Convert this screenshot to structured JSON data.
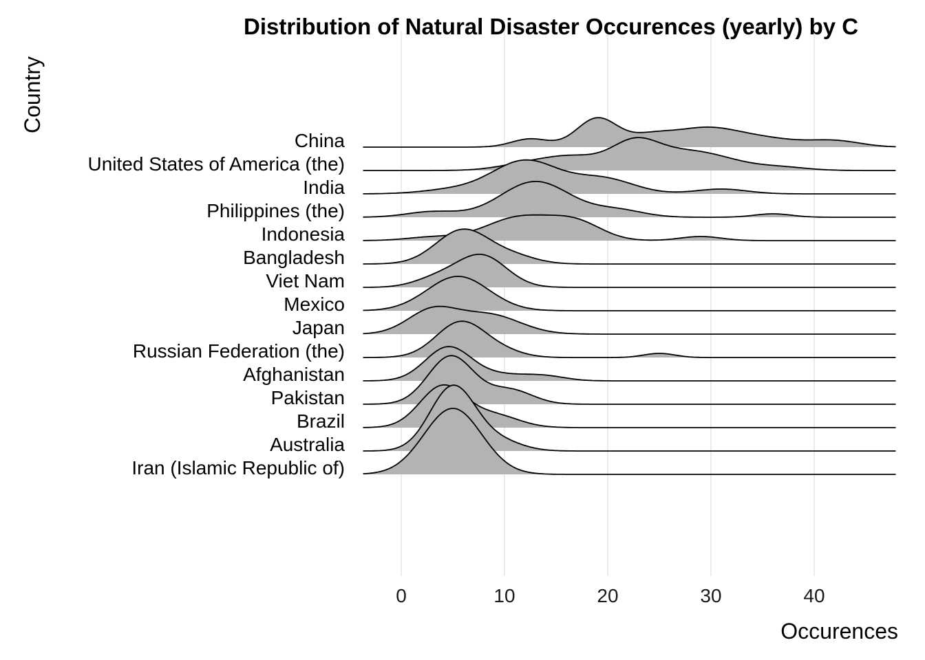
{
  "chart_data": {
    "type": "ridgeline",
    "title": "Distribution of Natural Disaster Occurences (yearly) by C",
    "xlabel": "Occurences",
    "ylabel": "Country",
    "x_ticks": [
      0,
      10,
      20,
      30,
      40
    ],
    "xlim": [
      -3.7,
      48
    ],
    "fill_color": "#b3b3b3",
    "line_color": "#000000",
    "grid": "vertical major gridlines",
    "series": [
      {
        "name": "China",
        "peaks": [
          {
            "mu": 12.5,
            "sd": 1.8,
            "h": 12
          },
          {
            "mu": 19,
            "sd": 2.0,
            "h": 42
          },
          {
            "mu": 24,
            "sd": 2.0,
            "h": 12
          },
          {
            "mu": 29.5,
            "sd": 3.5,
            "h": 28
          },
          {
            "mu": 36,
            "sd": 3,
            "h": 9
          },
          {
            "mu": 42,
            "sd": 2.5,
            "h": 9
          }
        ]
      },
      {
        "name": "United States of America (the)",
        "peaks": [
          {
            "mu": 13,
            "sd": 3.0,
            "h": 12
          },
          {
            "mu": 17,
            "sd": 2.5,
            "h": 15
          },
          {
            "mu": 22.5,
            "sd": 2.3,
            "h": 35
          },
          {
            "mu": 28,
            "sd": 4.0,
            "h": 28
          },
          {
            "mu": 37,
            "sd": 2.5,
            "h": 4
          }
        ]
      },
      {
        "name": "India",
        "peaks": [
          {
            "mu": 5,
            "sd": 3,
            "h": 6
          },
          {
            "mu": 12,
            "sd": 3.2,
            "h": 48
          },
          {
            "mu": 19.5,
            "sd": 3.0,
            "h": 22
          },
          {
            "mu": 31,
            "sd": 2.5,
            "h": 7
          }
        ]
      },
      {
        "name": "Philippines (the)",
        "peaks": [
          {
            "mu": 3,
            "sd": 2.5,
            "h": 8
          },
          {
            "mu": 13,
            "sd": 3.4,
            "h": 52
          },
          {
            "mu": 21,
            "sd": 2.5,
            "h": 10
          },
          {
            "mu": 36,
            "sd": 1.8,
            "h": 5
          }
        ]
      },
      {
        "name": "Indonesia",
        "peaks": [
          {
            "mu": 3,
            "sd": 2.5,
            "h": 5
          },
          {
            "mu": 11.5,
            "sd": 3.3,
            "h": 34
          },
          {
            "mu": 17,
            "sd": 2.5,
            "h": 24
          },
          {
            "mu": 29,
            "sd": 2.0,
            "h": 6
          }
        ]
      },
      {
        "name": "Bangladesh",
        "peaks": [
          {
            "mu": 6,
            "sd": 2.6,
            "h": 50
          },
          {
            "mu": 11,
            "sd": 2.2,
            "h": 10
          }
        ]
      },
      {
        "name": "Viet Nam",
        "peaks": [
          {
            "mu": 3.5,
            "sd": 2.2,
            "h": 13
          },
          {
            "mu": 7.8,
            "sd": 2.4,
            "h": 46
          }
        ]
      },
      {
        "name": "Mexico",
        "peaks": [
          {
            "mu": 5.5,
            "sd": 3.0,
            "h": 50
          }
        ]
      },
      {
        "name": "Japan",
        "peaks": [
          {
            "mu": 3,
            "sd": 2.4,
            "h": 34
          },
          {
            "mu": 8.5,
            "sd": 3.0,
            "h": 28
          }
        ]
      },
      {
        "name": "Russian Federation (the)",
        "peaks": [
          {
            "mu": 5.8,
            "sd": 2.4,
            "h": 52
          },
          {
            "mu": 10,
            "sd": 2.0,
            "h": 7
          },
          {
            "mu": 25,
            "sd": 1.5,
            "h": 6
          }
        ]
      },
      {
        "name": "Afghanistan",
        "peaks": [
          {
            "mu": 4.5,
            "sd": 2.2,
            "h": 48
          },
          {
            "mu": 9.5,
            "sd": 2.8,
            "h": 9
          },
          {
            "mu": 14,
            "sd": 2.0,
            "h": 6
          }
        ]
      },
      {
        "name": "Pakistan",
        "peaks": [
          {
            "mu": 4.8,
            "sd": 2.2,
            "h": 70
          },
          {
            "mu": 10.5,
            "sd": 2.2,
            "h": 21
          }
        ]
      },
      {
        "name": "Brazil",
        "peaks": [
          {
            "mu": 4.0,
            "sd": 2.2,
            "h": 60
          },
          {
            "mu": 9.0,
            "sd": 2.4,
            "h": 18
          }
        ]
      },
      {
        "name": "Australia",
        "peaks": [
          {
            "mu": 5.0,
            "sd": 2.2,
            "h": 94
          },
          {
            "mu": 9.5,
            "sd": 2.2,
            "h": 14
          }
        ]
      },
      {
        "name": "Iran (Islamic Republic of)",
        "peaks": [
          {
            "mu": 5.0,
            "sd": 2.8,
            "h": 96
          }
        ]
      }
    ]
  }
}
